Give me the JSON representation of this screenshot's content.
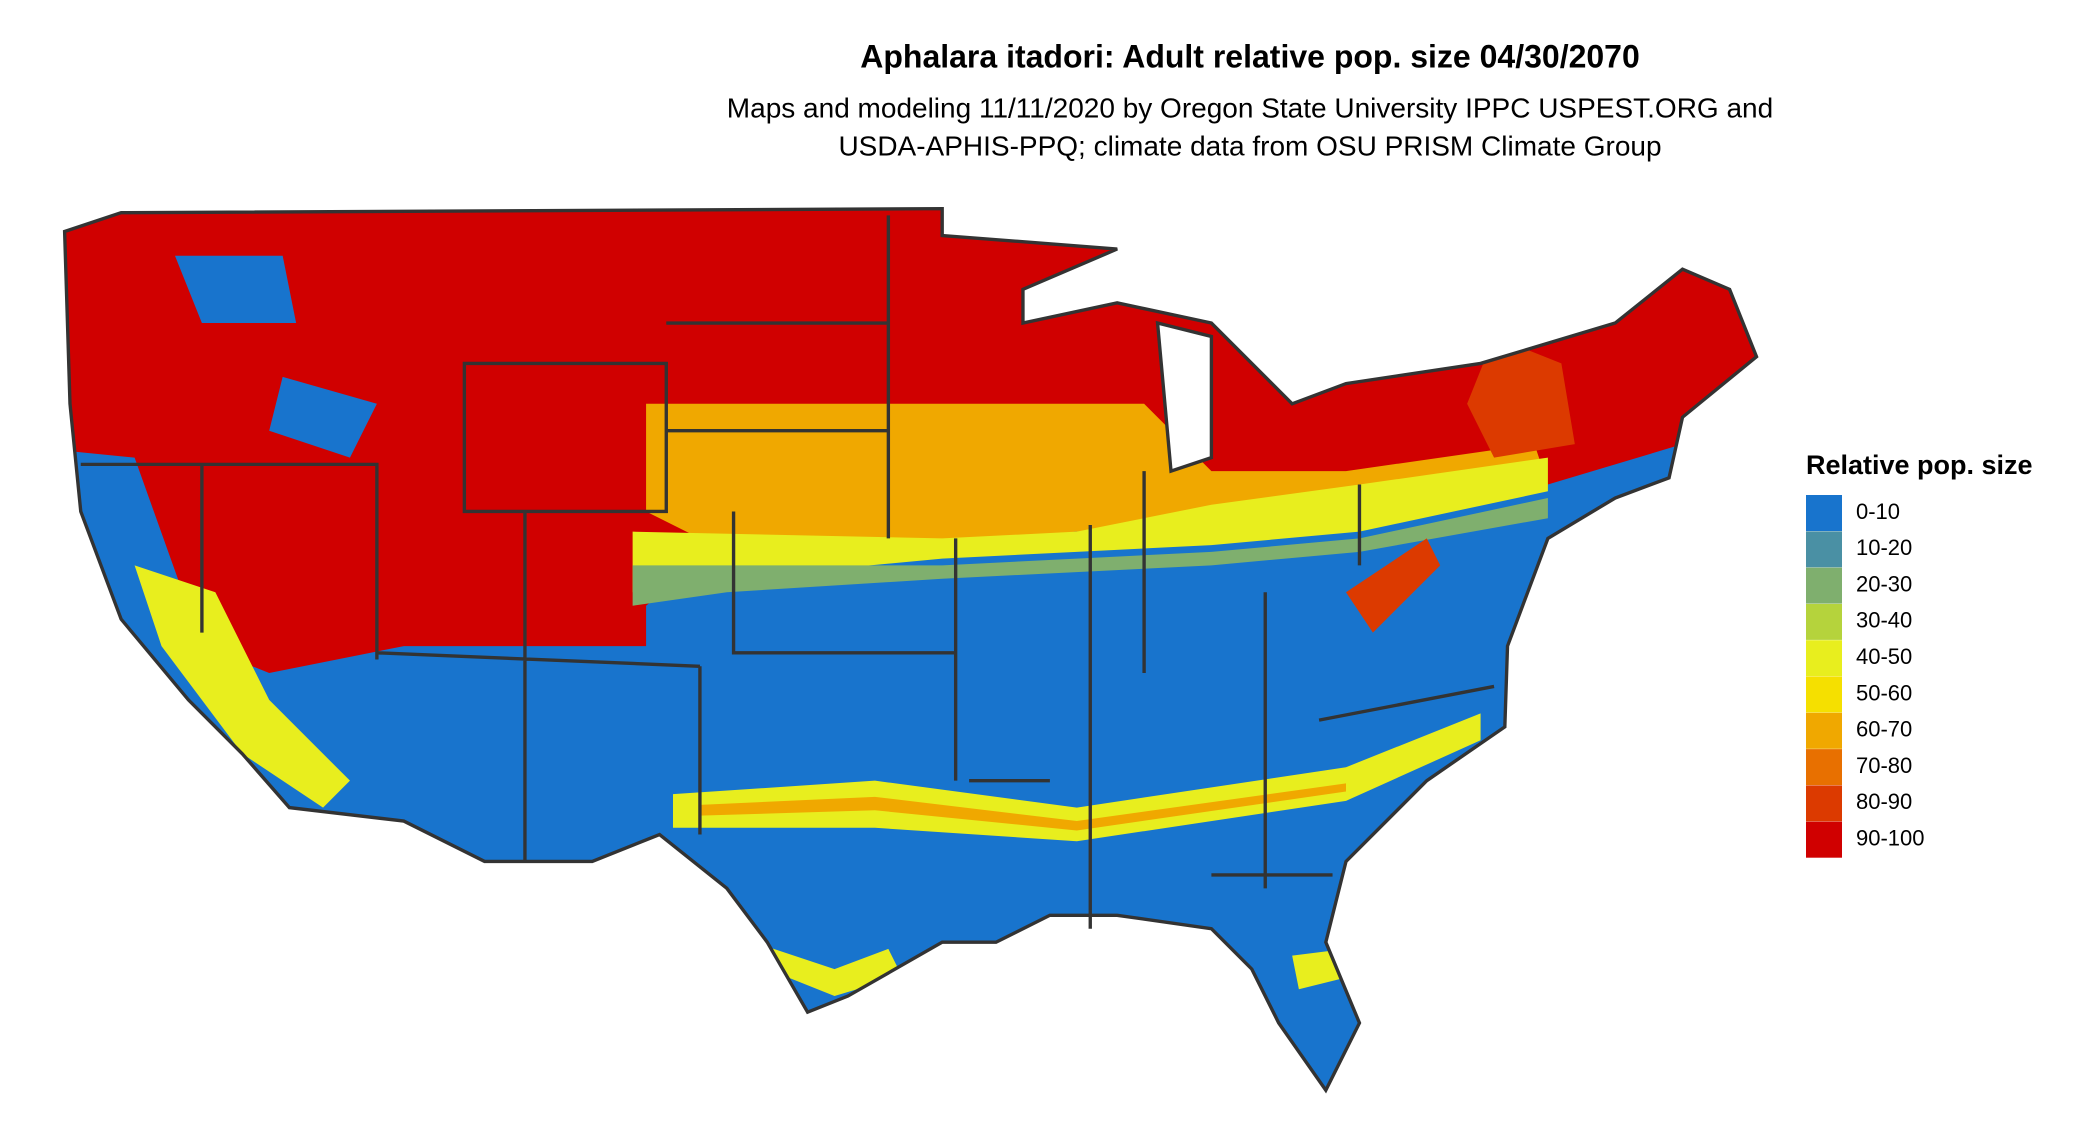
{
  "header": {
    "title": "Aphalara itadori: Adult relative pop. size 04/30/2070",
    "subtitle_lines": [
      "Maps and modeling 11/11/2020 by Oregon State University IPPC USPEST.ORG and",
      "USDA-APHIS-PPQ; climate data from OSU PRISM Climate Group"
    ]
  },
  "legend": {
    "title": "Relative pop. size",
    "items": [
      {
        "label": "0-10",
        "color": "#1874cd"
      },
      {
        "label": "10-20",
        "color": "#4a90a4"
      },
      {
        "label": "20-30",
        "color": "#7faf6e"
      },
      {
        "label": "30-40",
        "color": "#b5d33c"
      },
      {
        "label": "40-50",
        "color": "#e8ee1e"
      },
      {
        "label": "50-60",
        "color": "#f5e000"
      },
      {
        "label": "60-70",
        "color": "#f0a800"
      },
      {
        "label": "70-80",
        "color": "#e87000"
      },
      {
        "label": "80-90",
        "color": "#dc3a00"
      },
      {
        "label": "90-100",
        "color": "#d00000"
      }
    ]
  }
}
